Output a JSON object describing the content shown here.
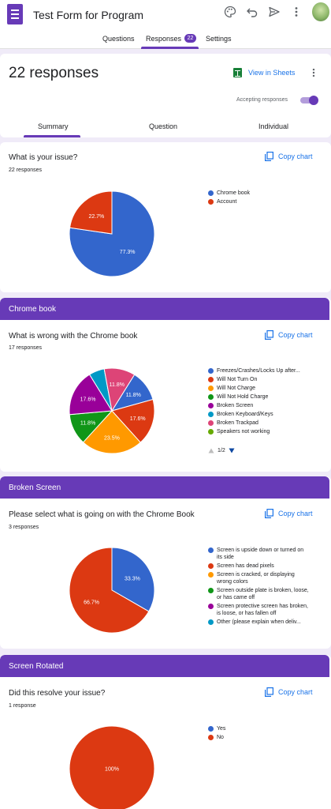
{
  "header": {
    "form_title": "Test Form for Program",
    "tabs": [
      {
        "label": "Questions"
      },
      {
        "label": "Responses",
        "badge": "22"
      },
      {
        "label": "Settings"
      }
    ]
  },
  "summary": {
    "title": "22 responses",
    "view_in_sheets": "View in Sheets",
    "accepting_label": "Accepting responses",
    "accepting_on": true,
    "subtabs": [
      "Summary",
      "Question",
      "Individual"
    ]
  },
  "copy_chart_label": "Copy chart",
  "sections": [
    "Chrome book",
    "Broken Screen",
    "Screen Rotated"
  ],
  "questions": [
    {
      "title": "What is your issue?",
      "count": "22 responses",
      "legend": [
        "Chrome book",
        "Account"
      ]
    },
    {
      "title": "What is wrong with the Chrome book",
      "count": "17 responses",
      "legend": [
        "Freezes/Crashes/Locks Up after...",
        "Will Not Turn On",
        "Will Not Charge",
        "Will Not Hold Charge",
        "Broken Screen",
        "Broken Keyboard/Keys",
        "Broken Trackpad",
        "Speakers not working"
      ],
      "pager": "1/2"
    },
    {
      "title": "Please select what is going on with the Chrome Book",
      "count": "3 responses",
      "legend": [
        "Screen is upside down or turned on its side",
        "Screen has dead pixels",
        "Screen is cracked, or displaying wrong colors",
        "Screen outside plate is broken, loose, or has came off",
        "Screen protective screen has broken, is loose, or has fallen off",
        "Other (please explain when deliv..."
      ]
    },
    {
      "title": "Did this resolve your issue?",
      "count": "1 response",
      "legend": [
        "Yes",
        "No"
      ]
    }
  ],
  "chart_data": [
    {
      "type": "pie",
      "categories": [
        "Chrome book",
        "Account"
      ],
      "values": [
        77.3,
        22.7
      ],
      "labels": [
        "77.3%",
        "22.7%"
      ],
      "colors": [
        "#3366cc",
        "#dc3912"
      ]
    },
    {
      "type": "pie",
      "categories": [
        "Freezes/Crashes/Locks Up after...",
        "Will Not Turn On",
        "Will Not Charge",
        "Will Not Hold Charge",
        "Broken Screen",
        "Broken Keyboard/Keys",
        "Broken Trackpad",
        "Speakers not working"
      ],
      "values": [
        11.8,
        17.6,
        23.5,
        11.8,
        17.6,
        5.9,
        11.8,
        0
      ],
      "labels": [
        "11.8%",
        "17.6%",
        "23.5%",
        "11.8%",
        "17.6%",
        "",
        "11.8%",
        ""
      ],
      "colors": [
        "#3366cc",
        "#dc3912",
        "#ff9900",
        "#109618",
        "#990099",
        "#0099c6",
        "#dd4477",
        "#66aa00"
      ]
    },
    {
      "type": "pie",
      "categories": [
        "Screen is upside down or turned on its side",
        "Screen has dead pixels",
        "Screen is cracked, or displaying wrong colors",
        "Screen outside plate is broken, loose, or has came off",
        "Screen protective screen has broken, is loose, or has fallen off",
        "Other (please explain when deliv..."
      ],
      "values": [
        33.3,
        66.7,
        0,
        0,
        0,
        0
      ],
      "labels": [
        "33.3%",
        "66.7%",
        "",
        "",
        "",
        ""
      ],
      "colors": [
        "#3366cc",
        "#dc3912",
        "#ff9900",
        "#109618",
        "#990099",
        "#0099c6"
      ]
    },
    {
      "type": "pie",
      "categories": [
        "Yes",
        "No"
      ],
      "values": [
        0,
        100
      ],
      "labels": [
        "",
        "100%"
      ],
      "colors": [
        "#3366cc",
        "#dc3912"
      ]
    }
  ]
}
